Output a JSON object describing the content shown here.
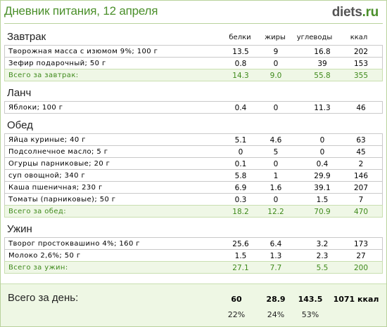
{
  "header": {
    "title": "Дневник питания, 12 апреля",
    "logo_main": "diets",
    "logo_tld": ".ru"
  },
  "columns": {
    "protein": "белки",
    "fat": "жиры",
    "carbs": "углеводы",
    "kcal": "ккал"
  },
  "meals": [
    {
      "title": "Завтрак",
      "items": [
        {
          "name": "Творожная масса с изюмом 9%; 100 г",
          "p": "13.5",
          "f": "9",
          "c": "16.8",
          "k": "202"
        },
        {
          "name": "Зефир подарочный; 50 г",
          "p": "0.8",
          "f": "0",
          "c": "39",
          "k": "153"
        }
      ],
      "total": {
        "name": "Всего за завтрак:",
        "p": "14.3",
        "f": "9.0",
        "c": "55.8",
        "k": "355"
      }
    },
    {
      "title": "Ланч",
      "items": [
        {
          "name": "Яблоки; 100 г",
          "p": "0.4",
          "f": "0",
          "c": "11.3",
          "k": "46"
        }
      ]
    },
    {
      "title": "Обед",
      "items": [
        {
          "name": "Яйца куриные; 40 г",
          "p": "5.1",
          "f": "4.6",
          "c": "0",
          "k": "63"
        },
        {
          "name": "Подсолнечное масло; 5 г",
          "p": "0",
          "f": "5",
          "c": "0",
          "k": "45"
        },
        {
          "name": "Огурцы парниковые; 20 г",
          "p": "0.1",
          "f": "0",
          "c": "0.4",
          "k": "2"
        },
        {
          "name": "суп овощной; 340 г",
          "p": "5.8",
          "f": "1",
          "c": "29.9",
          "k": "146"
        },
        {
          "name": "Каша пшеничная; 230 г",
          "p": "6.9",
          "f": "1.6",
          "c": "39.1",
          "k": "207"
        },
        {
          "name": "Томаты (парниковые); 50 г",
          "p": "0.3",
          "f": "0",
          "c": "1.5",
          "k": "7"
        }
      ],
      "total": {
        "name": "Всего за обед:",
        "p": "18.2",
        "f": "12.2",
        "c": "70.9",
        "k": "470"
      }
    },
    {
      "title": "Ужин",
      "items": [
        {
          "name": "Творог простоквашино 4%; 160 г",
          "p": "25.6",
          "f": "6.4",
          "c": "3.2",
          "k": "173"
        },
        {
          "name": "Молоко 2,6%; 50 г",
          "p": "1.5",
          "f": "1.3",
          "c": "2.3",
          "k": "27"
        }
      ],
      "total": {
        "name": "Всего за ужин:",
        "p": "27.1",
        "f": "7.7",
        "c": "5.5",
        "k": "200"
      }
    }
  ],
  "day_total": {
    "label": "Всего за день:",
    "p": "60",
    "f": "28.9",
    "c": "143.5",
    "k": "1071 ккал",
    "p_pct": "22%",
    "f_pct": "24%",
    "c_pct": "53%"
  },
  "colors": {
    "accent": "#4a8f2a",
    "total_bg": "#eff7e6",
    "day_bg": "#eef7e4",
    "border": "#c9c9c9"
  }
}
